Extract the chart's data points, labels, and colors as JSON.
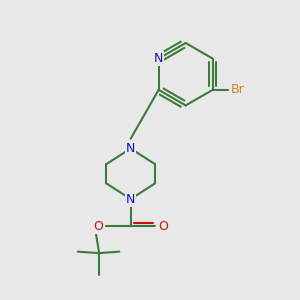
{
  "background_color": "#e8e8e8",
  "bond_color": "#3d7a3d",
  "nitrogen_color": "#1010cc",
  "oxygen_color": "#cc1010",
  "bromine_color": "#cc8822",
  "lw": 1.5,
  "fig_width": 3.0,
  "fig_height": 3.0,
  "xlim": [
    0,
    10
  ],
  "ylim": [
    0,
    10
  ]
}
